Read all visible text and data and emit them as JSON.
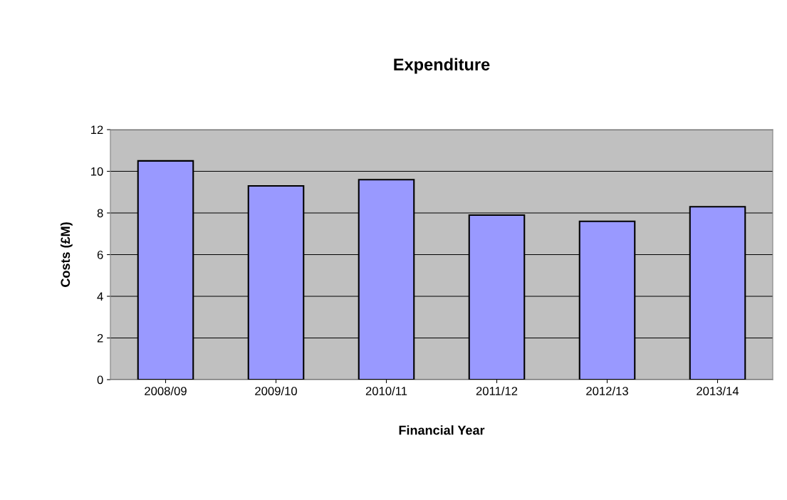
{
  "chart_data": {
    "type": "bar",
    "title": "Expenditure",
    "xlabel": "Financial Year",
    "ylabel": "Costs (£M)",
    "categories": [
      "2008/09",
      "2009/10",
      "2010/11",
      "2011/12",
      "2012/13",
      "2013/14"
    ],
    "values": [
      10.5,
      9.3,
      9.6,
      7.9,
      7.6,
      8.3
    ],
    "color": "#9999ff",
    "ylim": [
      0,
      12
    ],
    "yticks": [
      0,
      2,
      4,
      6,
      8,
      10,
      12
    ],
    "grid": "y",
    "legend": false
  }
}
